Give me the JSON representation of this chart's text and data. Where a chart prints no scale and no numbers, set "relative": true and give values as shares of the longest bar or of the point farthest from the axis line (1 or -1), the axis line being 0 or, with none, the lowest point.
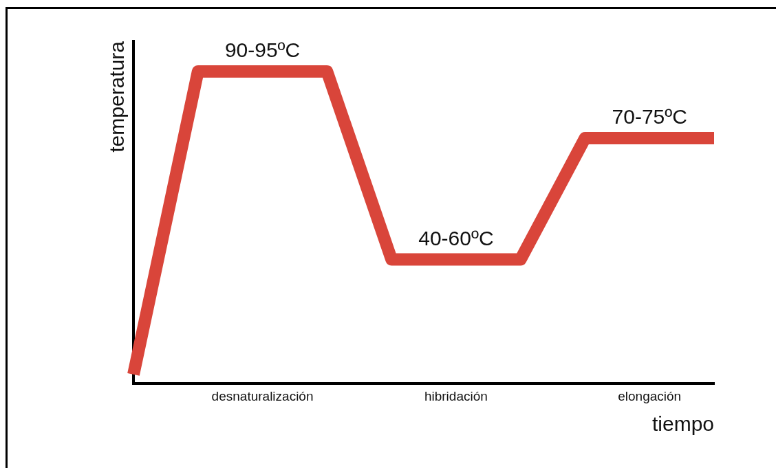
{
  "chart_data": {
    "type": "line",
    "relative": true,
    "xlabel": "tiempo",
    "ylabel": "temperatura",
    "categories": [
      null,
      null,
      "desnaturalización",
      null,
      null,
      "hibridación",
      null,
      null,
      "elongación",
      null
    ],
    "series": [
      {
        "color": "#d9453a",
        "values": [
          0,
          1,
          1,
          1,
          0.38,
          0.38,
          0.38,
          0.78,
          0.78,
          0.78
        ]
      }
    ],
    "annotations": [
      {
        "text": "90-95ºC",
        "x": "desnaturalización",
        "y": 1
      },
      {
        "text": "40-60ºC",
        "x": "hibridación",
        "y": 0.38
      },
      {
        "text": "70-75ºC",
        "x": "elongación",
        "y": 0.78
      }
    ],
    "legend": false,
    "marker": "none",
    "line_style": "solid"
  }
}
